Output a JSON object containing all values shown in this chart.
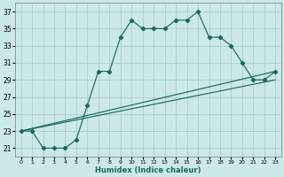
{
  "xlabel": "Humidex (Indice chaleur)",
  "bg_color": "#cce8e8",
  "grid_color": "#aacfcf",
  "line_color": "#1a6b5a",
  "xlim": [
    -0.5,
    23.5
  ],
  "ylim": [
    20.0,
    38.0
  ],
  "xticks": [
    0,
    1,
    2,
    3,
    4,
    5,
    6,
    7,
    8,
    9,
    10,
    11,
    12,
    13,
    14,
    15,
    16,
    17,
    18,
    19,
    20,
    21,
    22,
    23
  ],
  "yticks": [
    21,
    23,
    25,
    27,
    29,
    31,
    33,
    35,
    37
  ],
  "series1_x": [
    0,
    1,
    2,
    3,
    4,
    5,
    6,
    7,
    8,
    9,
    10,
    11,
    12,
    13,
    14,
    15,
    16,
    17,
    18,
    19,
    20,
    21,
    22,
    23
  ],
  "series1_y": [
    23,
    23,
    21,
    21,
    21,
    22,
    26,
    30,
    30,
    34,
    36,
    35,
    35,
    35,
    36,
    36,
    37,
    34,
    34,
    33,
    31,
    29,
    29,
    30
  ],
  "series2_x": [
    0,
    23
  ],
  "series2_y": [
    23,
    30
  ],
  "series3_x": [
    0,
    23
  ],
  "series3_y": [
    23,
    29
  ]
}
